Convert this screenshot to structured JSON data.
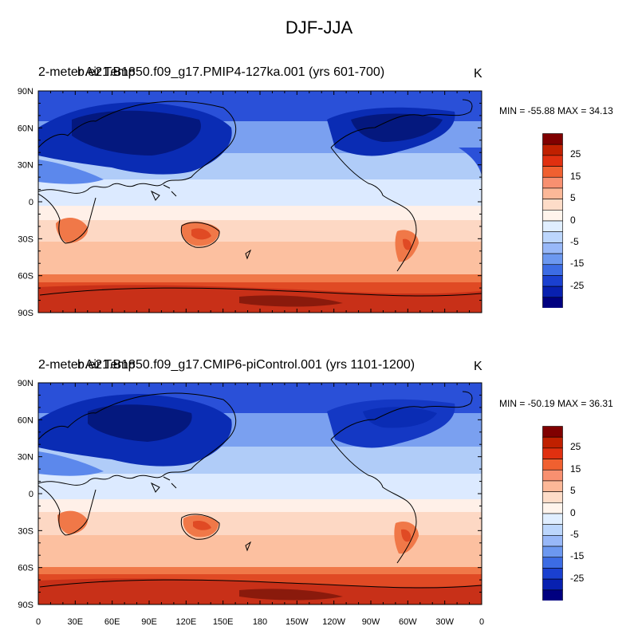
{
  "figure": {
    "title": "DJF-JJA"
  },
  "panels": [
    {
      "left_title": "2-meter Air Temp",
      "center_title": "b.e21.B1850.f09_g17.PMIP4-127ka.001 (yrs 601-700)",
      "units": "K",
      "stats": "MIN = -55.88 MAX =  34.13"
    },
    {
      "left_title": "2-meter Air Temp",
      "center_title": "b.e21.B1850.f09_g17.CMIP6-piControl.001 (yrs 1101-1200)",
      "units": "K",
      "stats": "MIN = -50.19 MAX =  36.31"
    }
  ],
  "axes": {
    "lat_labels": [
      "90N",
      "60N",
      "30N",
      "0",
      "30S",
      "60S",
      "90S"
    ],
    "lon_labels": [
      "0",
      "30E",
      "60E",
      "90E",
      "120E",
      "150E",
      "180",
      "150W",
      "120W",
      "90W",
      "60W",
      "30W",
      "0"
    ]
  },
  "colorbar": {
    "labels": [
      "25",
      "15",
      "5",
      "0",
      "-5",
      "-15",
      "-25"
    ],
    "colors": [
      "#800000",
      "#c02000",
      "#e03010",
      "#f06030",
      "#f89070",
      "#fcb898",
      "#fddcc8",
      "#fff4ec",
      "#e0eeff",
      "#bcd6fc",
      "#98b8f8",
      "#6c98f0",
      "#3c6ce4",
      "#1a40d0",
      "#0820b0",
      "#000080"
    ]
  },
  "map_colors": {
    "deep_red": "#b42814",
    "red": "#e04a24",
    "orange": "#f07848",
    "salmon": "#fcc0a0",
    "peach": "#fdd8c4",
    "cream": "#fff0e8",
    "pale_blue": "#dceaff",
    "light_blue": "#b0ccf8",
    "mid_blue": "#5c88ec",
    "blue": "#2a50d8",
    "deep_blue": "#0a2cb4",
    "navy": "#04187e"
  }
}
